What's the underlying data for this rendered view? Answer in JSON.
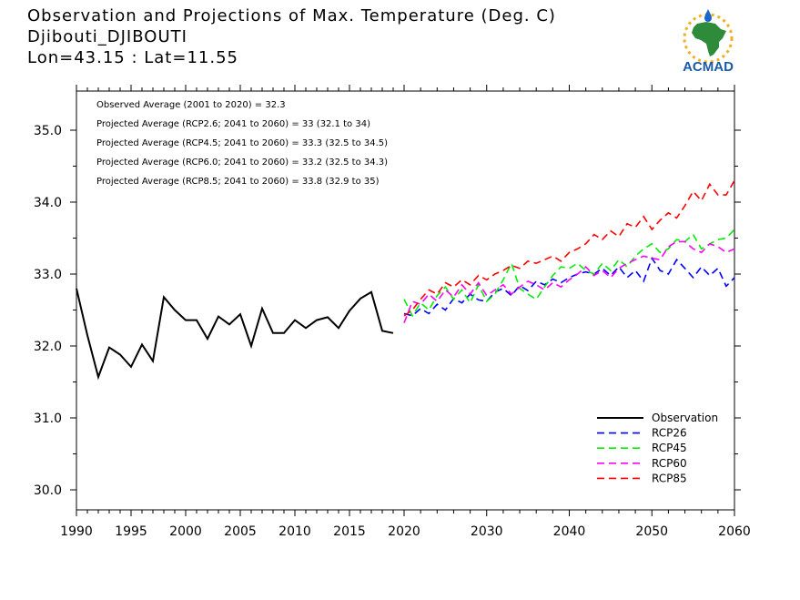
{
  "header": {
    "title": "Observation and Projections of Max. Temperature (Deg. C)",
    "station": "Djibouti_DJIBOUTI",
    "coords": "Lon=43.15 : Lat=11.55"
  },
  "logo": {
    "text": "ACMAD",
    "icon": "africa-sun-logo"
  },
  "annotations": [
    "Observed Average (2001 to 2020) = 32.3",
    "Projected Average (RCP2.6; 2041 to 2060) = 33 (32.1 to 34)",
    "Projected Average (RCP4.5; 2041 to 2060) = 33.3 (32.5 to 34.5)",
    "Projected Average (RCP6.0; 2041 to 2060) = 33.2 (32.5 to 34.3)",
    "Projected Average (RCP8.5; 2041 to 2060) = 33.8 (32.9 to 35)"
  ],
  "chart_data": {
    "type": "line",
    "title": "Observation and Projections of Max. Temperature (Deg. C)",
    "xlabel": "",
    "ylabel": "",
    "xlim": [
      1990,
      2060
    ],
    "ylim": [
      29.8,
      35.5
    ],
    "x_ticks_left": [
      1990,
      1995,
      2000,
      2005,
      2010,
      2015,
      2020
    ],
    "x_ticks_right": [
      2030,
      2040,
      2050,
      2060
    ],
    "y_ticks": [
      "30.0",
      "31.0",
      "32.0",
      "33.0",
      "34.0",
      "35.0"
    ],
    "legend_position": "bottom-right",
    "series": [
      {
        "name": "Observation",
        "color": "#000000",
        "style": "solid",
        "x": [
          1990,
          1991,
          1992,
          1993,
          1994,
          1995,
          1996,
          1997,
          1998,
          1999,
          2000,
          2001,
          2002,
          2003,
          2004,
          2005,
          2006,
          2007,
          2008,
          2009,
          2010,
          2011,
          2012,
          2013,
          2014,
          2015,
          2016,
          2017,
          2018,
          2019
        ],
        "values": [
          32.8,
          32.15,
          31.57,
          31.98,
          31.88,
          31.71,
          32.02,
          31.79,
          32.68,
          32.5,
          32.36,
          32.36,
          32.1,
          32.41,
          32.3,
          32.44,
          32.0,
          32.52,
          32.18,
          32.18,
          32.36,
          32.25,
          32.36,
          32.4,
          32.25,
          32.49,
          32.66,
          32.75,
          32.21,
          32.18
        ]
      },
      {
        "name": "RCP26",
        "color": "#0000ff",
        "style": "dashed",
        "x": [
          2020,
          2021,
          2022,
          2023,
          2024,
          2025,
          2026,
          2027,
          2028,
          2029,
          2030,
          2031,
          2032,
          2033,
          2034,
          2035,
          2036,
          2037,
          2038,
          2039,
          2040,
          2041,
          2042,
          2043,
          2044,
          2045,
          2046,
          2047,
          2048,
          2049,
          2050,
          2051,
          2052,
          2053,
          2054,
          2055,
          2056,
          2057,
          2058,
          2059,
          2060
        ],
        "values": [
          32.45,
          32.42,
          32.52,
          32.45,
          32.58,
          32.5,
          32.66,
          32.6,
          32.72,
          32.64,
          32.62,
          32.75,
          32.8,
          32.7,
          32.84,
          32.77,
          32.9,
          32.85,
          32.93,
          32.88,
          32.95,
          33.0,
          33.03,
          33.0,
          33.08,
          32.98,
          33.1,
          32.95,
          33.05,
          32.9,
          33.22,
          33.05,
          33.0,
          33.2,
          33.08,
          32.95,
          33.1,
          32.98,
          33.08,
          32.83,
          32.95
        ]
      },
      {
        "name": "RCP45",
        "color": "#00ee00",
        "style": "dashed",
        "x": [
          2020,
          2021,
          2022,
          2023,
          2024,
          2025,
          2026,
          2027,
          2028,
          2029,
          2030,
          2031,
          2032,
          2033,
          2034,
          2035,
          2036,
          2037,
          2038,
          2039,
          2040,
          2041,
          2042,
          2043,
          2044,
          2045,
          2046,
          2047,
          2048,
          2049,
          2050,
          2051,
          2052,
          2053,
          2054,
          2055,
          2056,
          2057,
          2058,
          2059,
          2060
        ],
        "values": [
          32.65,
          32.42,
          32.6,
          32.5,
          32.7,
          32.82,
          32.65,
          32.78,
          32.6,
          32.85,
          32.62,
          32.72,
          32.92,
          33.15,
          32.8,
          32.72,
          32.65,
          32.82,
          32.98,
          33.1,
          33.08,
          33.15,
          33.05,
          33.0,
          33.15,
          33.05,
          33.2,
          33.1,
          33.25,
          33.35,
          33.42,
          33.3,
          33.35,
          33.48,
          33.45,
          33.55,
          33.35,
          33.42,
          33.48,
          33.5,
          33.62
        ]
      },
      {
        "name": "RCP60",
        "color": "#ff00ff",
        "style": "dashed",
        "x": [
          2020,
          2021,
          2022,
          2023,
          2024,
          2025,
          2026,
          2027,
          2028,
          2029,
          2030,
          2031,
          2032,
          2033,
          2034,
          2035,
          2036,
          2037,
          2038,
          2039,
          2040,
          2041,
          2042,
          2043,
          2044,
          2045,
          2046,
          2047,
          2048,
          2049,
          2050,
          2051,
          2052,
          2053,
          2054,
          2055,
          2056,
          2057,
          2058,
          2059,
          2060
        ],
        "values": [
          32.32,
          32.62,
          32.58,
          32.72,
          32.62,
          32.78,
          32.68,
          32.85,
          32.72,
          32.88,
          32.7,
          32.78,
          32.85,
          32.72,
          32.82,
          32.9,
          32.85,
          32.78,
          32.88,
          32.82,
          32.92,
          33.0,
          33.1,
          32.98,
          33.05,
          32.95,
          33.08,
          33.15,
          33.2,
          33.25,
          33.22,
          33.2,
          33.38,
          33.45,
          33.45,
          33.35,
          33.3,
          33.42,
          33.38,
          33.3,
          33.35
        ]
      },
      {
        "name": "RCP85",
        "color": "#ff0000",
        "style": "dashed",
        "x": [
          2020,
          2021,
          2022,
          2023,
          2024,
          2025,
          2026,
          2027,
          2028,
          2029,
          2030,
          2031,
          2032,
          2033,
          2034,
          2035,
          2036,
          2037,
          2038,
          2039,
          2040,
          2041,
          2042,
          2043,
          2044,
          2045,
          2046,
          2047,
          2048,
          2049,
          2050,
          2051,
          2052,
          2053,
          2054,
          2055,
          2056,
          2057,
          2058,
          2059,
          2060
        ],
        "values": [
          32.42,
          32.5,
          32.65,
          32.78,
          32.72,
          32.88,
          32.82,
          32.92,
          32.85,
          32.98,
          32.92,
          33.0,
          33.05,
          33.12,
          33.08,
          33.18,
          33.15,
          33.2,
          33.25,
          33.18,
          33.3,
          33.35,
          33.42,
          33.55,
          33.48,
          33.6,
          33.52,
          33.7,
          33.65,
          33.8,
          33.62,
          33.75,
          33.85,
          33.78,
          33.95,
          34.15,
          34.02,
          34.25,
          34.1,
          34.1,
          34.3
        ]
      }
    ]
  }
}
